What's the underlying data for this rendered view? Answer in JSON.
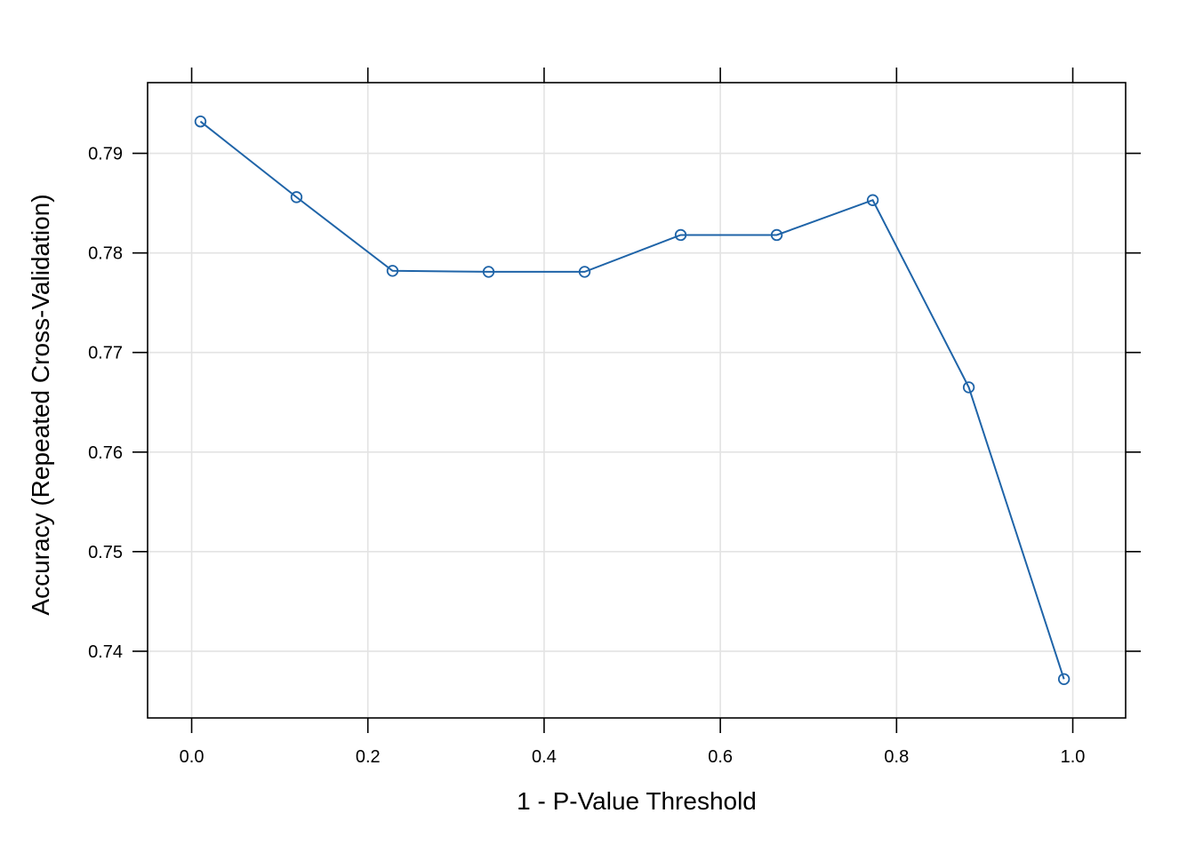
{
  "chart_data": {
    "type": "line",
    "xlabel": "1 - P-Value Threshold",
    "ylabel": "Accuracy (Repeated Cross-Validation)",
    "xlim": [
      -0.05,
      1.06
    ],
    "ylim": [
      0.7333,
      0.7971
    ],
    "x_ticks": [
      0.0,
      0.2,
      0.4,
      0.6,
      0.8,
      1.0
    ],
    "x_tick_labels": [
      "0.0",
      "0.2",
      "0.4",
      "0.6",
      "0.8",
      "1.0"
    ],
    "y_ticks": [
      0.74,
      0.75,
      0.76,
      0.77,
      0.78,
      0.79
    ],
    "y_tick_labels": [
      "0.74",
      "0.75",
      "0.76",
      "0.77",
      "0.78",
      "0.79"
    ],
    "grid": true,
    "line_color": "#1f64a8",
    "series": [
      {
        "x": [
          0.01,
          0.119,
          0.228,
          0.337,
          0.446,
          0.555,
          0.664,
          0.773,
          0.882,
          0.99
        ],
        "y": [
          0.7932,
          0.7856,
          0.7782,
          0.7781,
          0.7781,
          0.7818,
          0.7818,
          0.7853,
          0.7665,
          0.7372
        ]
      }
    ]
  }
}
